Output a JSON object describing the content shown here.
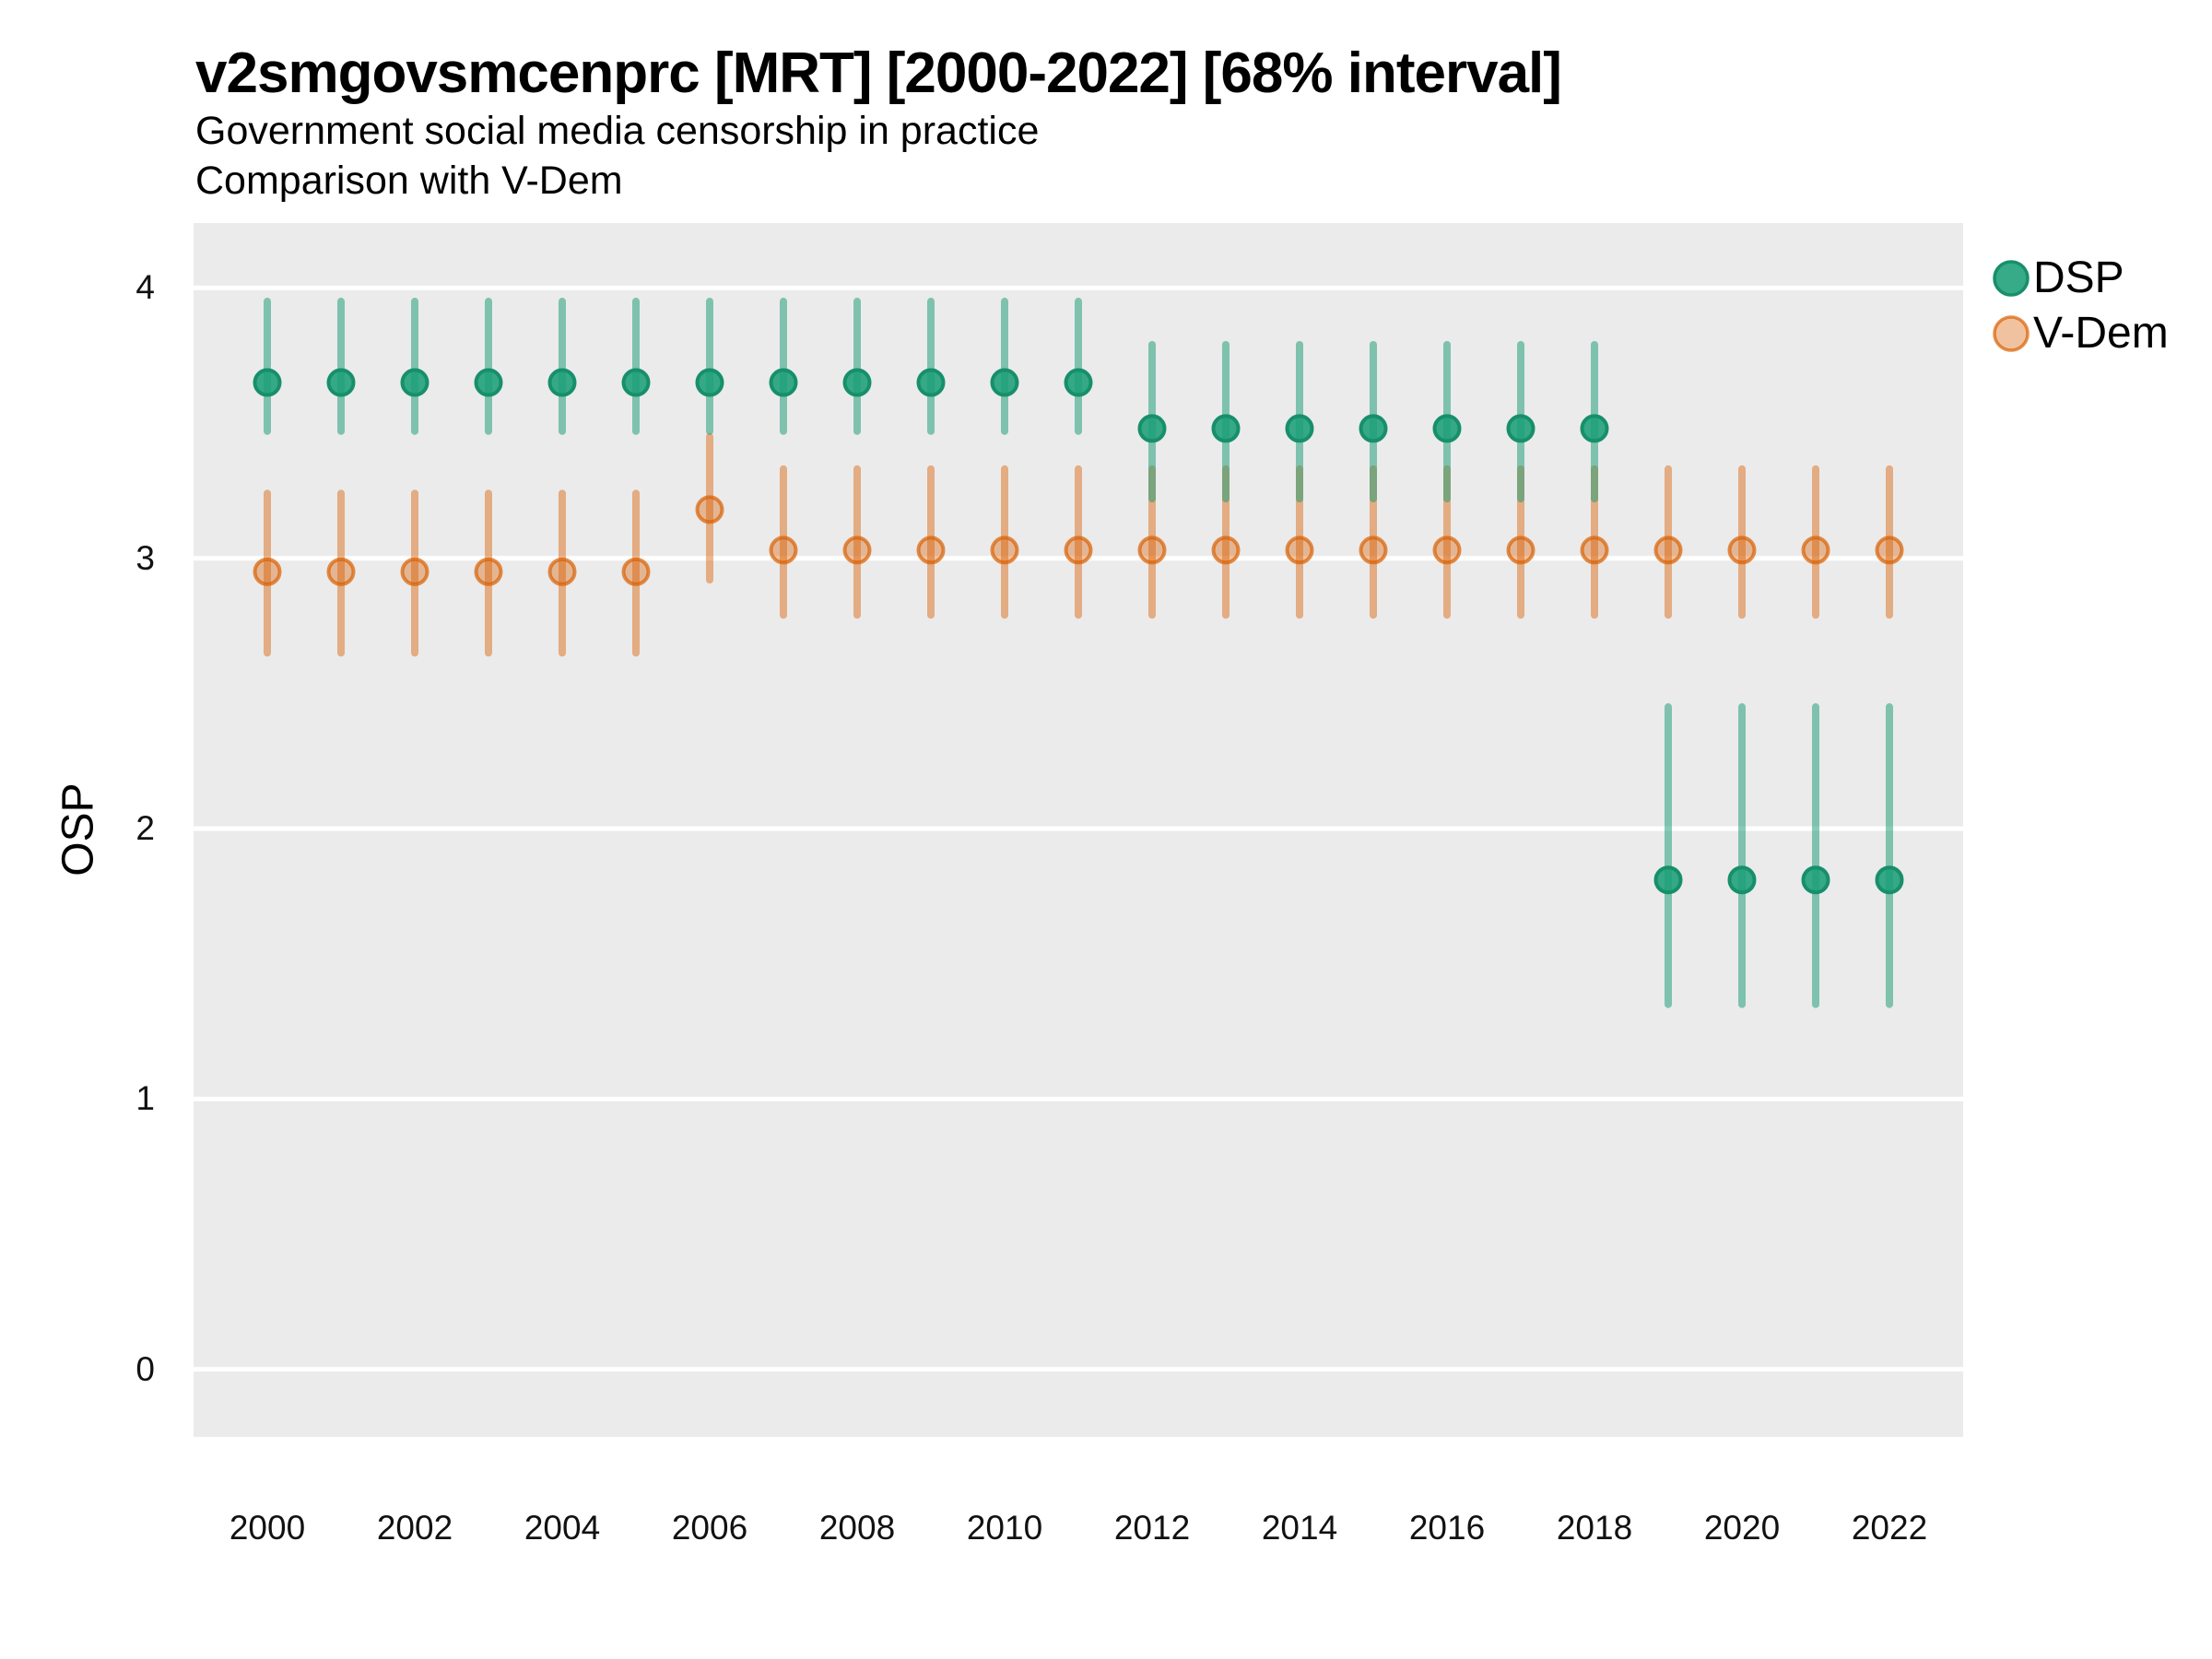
{
  "header": {
    "title": "v2smgovsmcenprc [MRT] [2000-2022] [68% interval]",
    "subtitle1": "Government social media censorship in practice",
    "subtitle2": "Comparison with V-Dem"
  },
  "legend": {
    "items": [
      {
        "label": "DSP",
        "color": "#1B9E77"
      },
      {
        "label": "V-Dem",
        "color": "#D95F02"
      }
    ]
  },
  "colors": {
    "panel_background": "#EBEBEB",
    "gridline": "#FFFFFF",
    "dsp": "#1B9E77",
    "vdem": "#D95F02",
    "text": "#000000"
  },
  "chart_data": {
    "type": "pointrange",
    "title": "v2smgovsmcenprc [MRT] [2000-2022] [68% interval]",
    "subtitle": [
      "Government social media censorship in practice",
      "Comparison with V-Dem"
    ],
    "xlabel": "",
    "ylabel": "OSP",
    "interval_level": "68%",
    "grid": true,
    "legend_position": "right-top",
    "x_domain": [
      1999,
      2023
    ],
    "y_domain": [
      -0.25,
      4.24
    ],
    "x_ticks": [
      2000,
      2002,
      2004,
      2006,
      2008,
      2010,
      2012,
      2014,
      2016,
      2018,
      2020,
      2022
    ],
    "y_ticks": [
      0,
      1,
      2,
      3,
      4
    ],
    "series": [
      {
        "name": "V-Dem",
        "color": "#D95F02",
        "points": [
          {
            "x": 2000,
            "y": 2.95,
            "lo": 2.65,
            "hi": 3.24
          },
          {
            "x": 2001,
            "y": 2.95,
            "lo": 2.65,
            "hi": 3.24
          },
          {
            "x": 2002,
            "y": 2.95,
            "lo": 2.65,
            "hi": 3.24
          },
          {
            "x": 2003,
            "y": 2.95,
            "lo": 2.65,
            "hi": 3.24
          },
          {
            "x": 2004,
            "y": 2.95,
            "lo": 2.65,
            "hi": 3.24
          },
          {
            "x": 2005,
            "y": 2.95,
            "lo": 2.65,
            "hi": 3.24
          },
          {
            "x": 2006,
            "y": 3.18,
            "lo": 2.92,
            "hi": 3.45
          },
          {
            "x": 2007,
            "y": 3.03,
            "lo": 2.79,
            "hi": 3.33
          },
          {
            "x": 2008,
            "y": 3.03,
            "lo": 2.79,
            "hi": 3.33
          },
          {
            "x": 2009,
            "y": 3.03,
            "lo": 2.79,
            "hi": 3.33
          },
          {
            "x": 2010,
            "y": 3.03,
            "lo": 2.79,
            "hi": 3.33
          },
          {
            "x": 2011,
            "y": 3.03,
            "lo": 2.79,
            "hi": 3.33
          },
          {
            "x": 2012,
            "y": 3.03,
            "lo": 2.79,
            "hi": 3.33
          },
          {
            "x": 2013,
            "y": 3.03,
            "lo": 2.79,
            "hi": 3.33
          },
          {
            "x": 2014,
            "y": 3.03,
            "lo": 2.79,
            "hi": 3.33
          },
          {
            "x": 2015,
            "y": 3.03,
            "lo": 2.79,
            "hi": 3.33
          },
          {
            "x": 2016,
            "y": 3.03,
            "lo": 2.79,
            "hi": 3.33
          },
          {
            "x": 2017,
            "y": 3.03,
            "lo": 2.79,
            "hi": 3.33
          },
          {
            "x": 2018,
            "y": 3.03,
            "lo": 2.79,
            "hi": 3.33
          },
          {
            "x": 2019,
            "y": 3.03,
            "lo": 2.79,
            "hi": 3.33
          },
          {
            "x": 2020,
            "y": 3.03,
            "lo": 2.79,
            "hi": 3.33
          },
          {
            "x": 2021,
            "y": 3.03,
            "lo": 2.79,
            "hi": 3.33
          },
          {
            "x": 2022,
            "y": 3.03,
            "lo": 2.79,
            "hi": 3.33
          }
        ]
      },
      {
        "name": "DSP",
        "color": "#1B9E77",
        "points": [
          {
            "x": 2000,
            "y": 3.65,
            "lo": 3.47,
            "hi": 3.95
          },
          {
            "x": 2001,
            "y": 3.65,
            "lo": 3.47,
            "hi": 3.95
          },
          {
            "x": 2002,
            "y": 3.65,
            "lo": 3.47,
            "hi": 3.95
          },
          {
            "x": 2003,
            "y": 3.65,
            "lo": 3.47,
            "hi": 3.95
          },
          {
            "x": 2004,
            "y": 3.65,
            "lo": 3.47,
            "hi": 3.95
          },
          {
            "x": 2005,
            "y": 3.65,
            "lo": 3.47,
            "hi": 3.95
          },
          {
            "x": 2006,
            "y": 3.65,
            "lo": 3.47,
            "hi": 3.95
          },
          {
            "x": 2007,
            "y": 3.65,
            "lo": 3.47,
            "hi": 3.95
          },
          {
            "x": 2008,
            "y": 3.65,
            "lo": 3.47,
            "hi": 3.95
          },
          {
            "x": 2009,
            "y": 3.65,
            "lo": 3.47,
            "hi": 3.95
          },
          {
            "x": 2010,
            "y": 3.65,
            "lo": 3.47,
            "hi": 3.95
          },
          {
            "x": 2011,
            "y": 3.65,
            "lo": 3.47,
            "hi": 3.95
          },
          {
            "x": 2012,
            "y": 3.48,
            "lo": 3.22,
            "hi": 3.79
          },
          {
            "x": 2013,
            "y": 3.48,
            "lo": 3.22,
            "hi": 3.79
          },
          {
            "x": 2014,
            "y": 3.48,
            "lo": 3.22,
            "hi": 3.79
          },
          {
            "x": 2015,
            "y": 3.48,
            "lo": 3.22,
            "hi": 3.79
          },
          {
            "x": 2016,
            "y": 3.48,
            "lo": 3.22,
            "hi": 3.79
          },
          {
            "x": 2017,
            "y": 3.48,
            "lo": 3.22,
            "hi": 3.79
          },
          {
            "x": 2018,
            "y": 3.48,
            "lo": 3.22,
            "hi": 3.79
          },
          {
            "x": 2019,
            "y": 1.81,
            "lo": 1.35,
            "hi": 2.45
          },
          {
            "x": 2020,
            "y": 1.81,
            "lo": 1.35,
            "hi": 2.45
          },
          {
            "x": 2021,
            "y": 1.81,
            "lo": 1.35,
            "hi": 2.45
          },
          {
            "x": 2022,
            "y": 1.81,
            "lo": 1.35,
            "hi": 2.45
          }
        ]
      }
    ]
  }
}
